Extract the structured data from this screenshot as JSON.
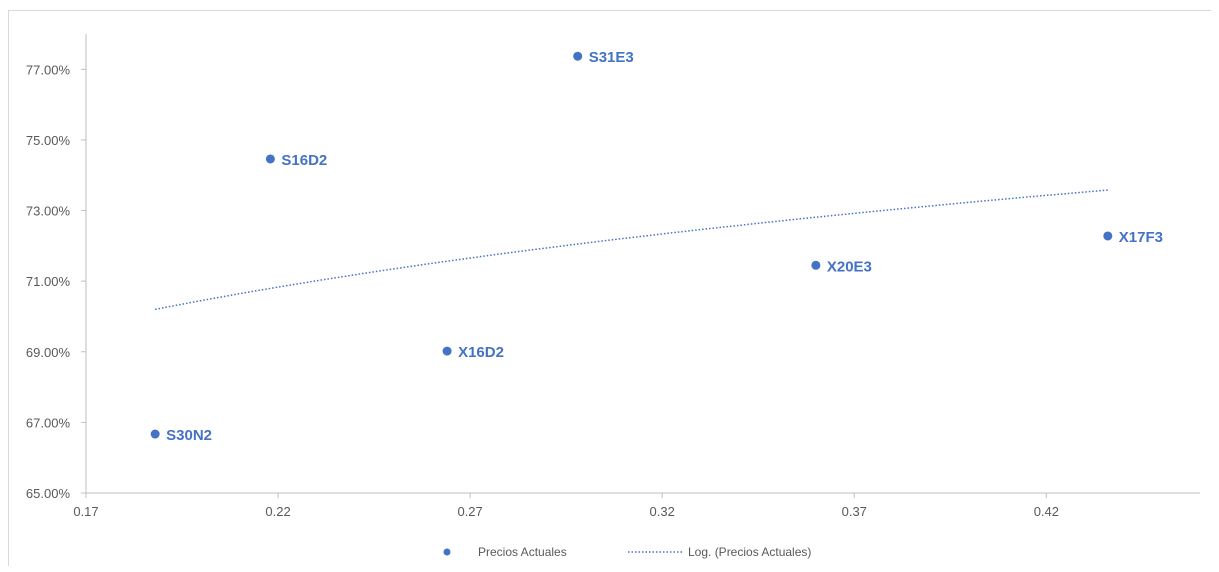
{
  "chart_data": {
    "type": "scatter",
    "title": "",
    "xlabel": "",
    "ylabel": "",
    "xlim": [
      0.17,
      0.46
    ],
    "ylim": [
      0.65,
      0.78
    ],
    "x_ticks": [
      0.17,
      0.22,
      0.27,
      0.32,
      0.37,
      0.42
    ],
    "x_tick_labels": [
      "0.17",
      "0.22",
      "0.27",
      "0.32",
      "0.37",
      "0.42"
    ],
    "y_ticks": [
      0.65,
      0.67,
      0.69,
      0.71,
      0.73,
      0.75,
      0.77
    ],
    "y_tick_labels": [
      "65.00%",
      "67.00%",
      "69.00%",
      "71.00%",
      "73.00%",
      "75.00%",
      "77.00%"
    ],
    "grid": false,
    "legend_position": "bottom",
    "series": [
      {
        "name": "Precios Actuales",
        "color": "#4472c4",
        "points": [
          {
            "label": "S30N2",
            "x": 0.188,
            "y": 0.6667
          },
          {
            "label": "S16D2",
            "x": 0.218,
            "y": 0.7446
          },
          {
            "label": "X16D2",
            "x": 0.264,
            "y": 0.6902
          },
          {
            "label": "S31E3",
            "x": 0.298,
            "y": 0.7737
          },
          {
            "label": "X20E3",
            "x": 0.36,
            "y": 0.7145
          },
          {
            "label": "X17F3",
            "x": 0.436,
            "y": 0.7228
          }
        ]
      }
    ],
    "trendline": {
      "name": "Log. (Precios Actuales)",
      "type": "logarithmic",
      "color": "#4472c4",
      "style": "dotted",
      "x_range": [
        0.188,
        0.436
      ],
      "y_range": [
        0.702,
        0.7358
      ]
    }
  }
}
